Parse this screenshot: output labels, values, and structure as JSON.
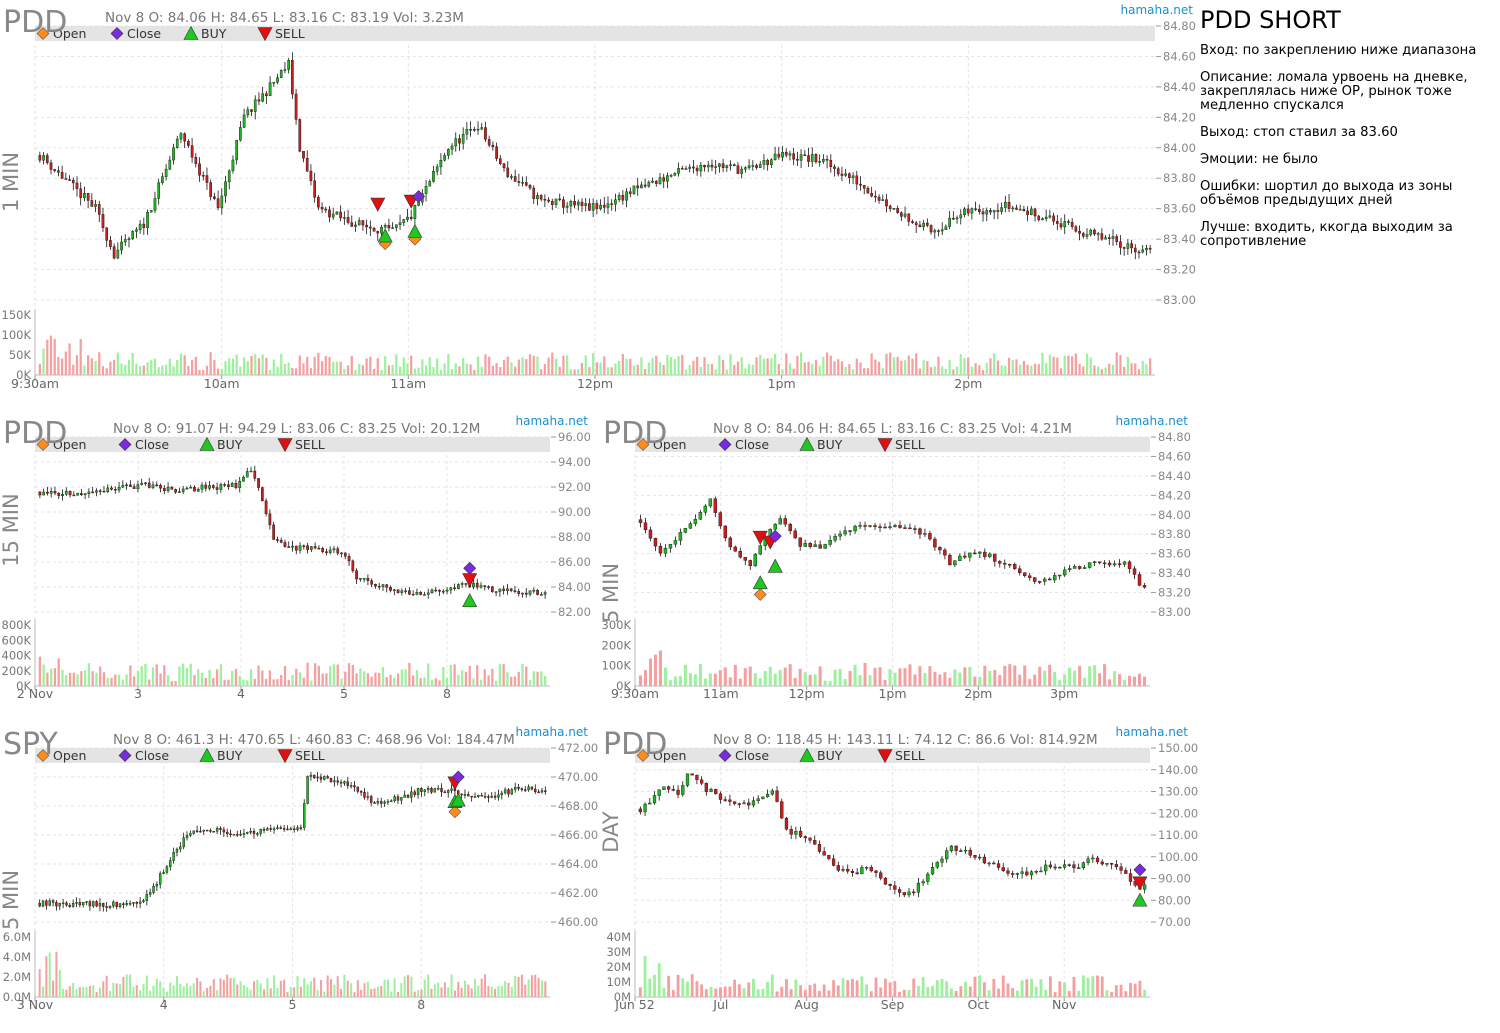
{
  "notes": {
    "title": "PDD SHORT",
    "entry": "Вход: по закреплению ниже диапазона",
    "description": "Описание: ломала урвоень на дневке, закреплялась ниже ОР, рынок тоже медленно спускался",
    "exit": "Выход: стоп ставил за 83.60",
    "emotions": "Эмоции: не было",
    "mistakes": "Ошибки: шортил до выхода из зоны объёмов предыдущих дней",
    "better": "Лучше: входить, ккогда выходим за сопротивление"
  },
  "legend": {
    "open": "Open",
    "close": "Close",
    "buy": "BUY",
    "sell": "SELL",
    "colors": {
      "open": "#ff8c1a",
      "close": "#7a2be2",
      "buy": "#1ec81e",
      "sell": "#e01010"
    }
  },
  "colors": {
    "up": "#1db81d",
    "down": "#c81e1e",
    "vol_up": "#9ef09e",
    "vol_down": "#f5a0a0",
    "grid": "#e3e3e3",
    "watermark": "#1a8fd1"
  },
  "chart_data": [
    {
      "id": "c1",
      "type": "candlestick",
      "ticker": "PDD",
      "timeframe": "1 MIN",
      "info": "Nov 8 O: 84.06 H: 84.65 L: 83.16 C: 83.19     Vol: 3.23M",
      "source": "hamaha.net",
      "y_ticks": [
        "84.80",
        "84.60",
        "84.40",
        "84.20",
        "84.00",
        "83.80",
        "83.60",
        "83.40",
        "83.20",
        "83.00"
      ],
      "ylim": [
        83.0,
        84.8
      ],
      "x_ticks": [
        "9:30am",
        "10am",
        "11am",
        "12pm",
        "1pm",
        "2pm"
      ],
      "vol_ticks": [
        "150K",
        "100K",
        "50K",
        "0K"
      ],
      "path": [
        [
          0,
          83.95
        ],
        [
          15,
          83.6
        ],
        [
          20,
          83.3
        ],
        [
          28,
          83.5
        ],
        [
          38,
          84.1
        ],
        [
          48,
          83.6
        ],
        [
          55,
          84.2
        ],
        [
          62,
          84.4
        ],
        [
          67,
          84.55
        ],
        [
          70,
          84.0
        ],
        [
          75,
          83.6
        ],
        [
          85,
          83.5
        ],
        [
          95,
          83.45
        ],
        [
          100,
          83.55
        ],
        [
          110,
          84.0
        ],
        [
          118,
          84.15
        ],
        [
          125,
          83.85
        ],
        [
          135,
          83.65
        ],
        [
          150,
          83.6
        ],
        [
          160,
          83.72
        ],
        [
          170,
          83.82
        ],
        [
          180,
          83.9
        ],
        [
          190,
          83.85
        ],
        [
          200,
          83.95
        ],
        [
          210,
          83.92
        ],
        [
          220,
          83.78
        ],
        [
          230,
          83.6
        ],
        [
          240,
          83.45
        ],
        [
          250,
          83.58
        ],
        [
          260,
          83.62
        ],
        [
          270,
          83.55
        ],
        [
          280,
          83.45
        ],
        [
          290,
          83.38
        ],
        [
          300,
          83.3
        ],
        [
          305,
          83.22
        ]
      ],
      "n": 300,
      "markers": [
        {
          "type": "open",
          "i": 93,
          "y": 83.37
        },
        {
          "type": "open",
          "i": 101,
          "y": 83.4
        },
        {
          "type": "buy",
          "i": 93,
          "y": 83.42
        },
        {
          "type": "buy",
          "i": 101,
          "y": 83.45
        },
        {
          "type": "sell",
          "i": 91,
          "y": 83.63
        },
        {
          "type": "sell",
          "i": 100,
          "y": 83.65
        },
        {
          "type": "close",
          "i": 102,
          "y": 83.68
        }
      ]
    },
    {
      "id": "c2",
      "type": "candlestick",
      "ticker": "PDD",
      "timeframe": "15 MIN",
      "info": "Nov 8 O: 91.07 H: 94.29 L: 83.06 C: 83.25     Vol: 20.12M",
      "source": "hamaha.net",
      "y_ticks": [
        "96.00",
        "94.00",
        "92.00",
        "90.00",
        "88.00",
        "86.00",
        "84.00",
        "82.00"
      ],
      "ylim": [
        82.0,
        96.0
      ],
      "x_ticks": [
        "2 Nov",
        "3",
        "4",
        "5",
        "8"
      ],
      "vol_ticks": [
        "800K",
        "600K",
        "400K",
        "200K",
        "0K"
      ],
      "path": [
        [
          0,
          91.6
        ],
        [
          10,
          91.4
        ],
        [
          20,
          91.8
        ],
        [
          27,
          92.2
        ],
        [
          35,
          91.7
        ],
        [
          45,
          92.0
        ],
        [
          52,
          92.1
        ],
        [
          56,
          93.5
        ],
        [
          59,
          91.0
        ],
        [
          62,
          88.0
        ],
        [
          65,
          87.2
        ],
        [
          78,
          86.9
        ],
        [
          81,
          86.4
        ],
        [
          84,
          84.8
        ],
        [
          90,
          84.0
        ],
        [
          100,
          83.5
        ],
        [
          110,
          84.0
        ],
        [
          116,
          84.2
        ],
        [
          120,
          83.7
        ],
        [
          130,
          83.6
        ],
        [
          135,
          83.5
        ]
      ],
      "n": 135,
      "markers": [
        {
          "type": "close",
          "i": 114,
          "y": 85.5
        },
        {
          "type": "sell",
          "i": 114,
          "y": 84.6
        },
        {
          "type": "buy",
          "i": 114,
          "y": 82.9
        }
      ]
    },
    {
      "id": "c3",
      "type": "candlestick",
      "ticker": "PDD",
      "timeframe": "5 MIN",
      "info": "Nov 8 O: 84.06 H: 84.65 L: 83.16 C: 83.25     Vol: 4.21M",
      "source": "hamaha.net",
      "y_ticks": [
        "84.80",
        "84.60",
        "84.40",
        "84.20",
        "84.00",
        "83.80",
        "83.60",
        "83.40",
        "83.20",
        "83.00"
      ],
      "ylim": [
        83.0,
        84.8
      ],
      "x_ticks": [
        "9:30am",
        "11am",
        "12pm",
        "1pm",
        "2pm",
        "3pm"
      ],
      "vol_ticks": [
        "300K",
        "200K",
        "100K",
        "0K"
      ],
      "path": [
        [
          0,
          83.95
        ],
        [
          4,
          83.6
        ],
        [
          8,
          83.8
        ],
        [
          12,
          84.0
        ],
        [
          14,
          84.15
        ],
        [
          18,
          83.65
        ],
        [
          22,
          83.45
        ],
        [
          25,
          83.8
        ],
        [
          28,
          83.95
        ],
        [
          32,
          83.7
        ],
        [
          36,
          83.65
        ],
        [
          42,
          83.85
        ],
        [
          48,
          83.9
        ],
        [
          54,
          83.88
        ],
        [
          58,
          83.75
        ],
        [
          62,
          83.5
        ],
        [
          66,
          83.6
        ],
        [
          70,
          83.58
        ],
        [
          76,
          83.4
        ],
        [
          80,
          83.3
        ],
        [
          85,
          83.42
        ],
        [
          92,
          83.5
        ],
        [
          97,
          83.52
        ],
        [
          100,
          83.3
        ],
        [
          102,
          83.22
        ]
      ],
      "n": 102,
      "markers": [
        {
          "type": "open",
          "i": 24,
          "y": 83.18
        },
        {
          "type": "buy",
          "i": 24,
          "y": 83.3
        },
        {
          "type": "buy",
          "i": 27,
          "y": 83.47
        },
        {
          "type": "sell",
          "i": 24,
          "y": 83.77
        },
        {
          "type": "sell",
          "i": 26,
          "y": 83.72
        },
        {
          "type": "close",
          "i": 27,
          "y": 83.78
        }
      ]
    },
    {
      "id": "c4",
      "type": "candlestick",
      "ticker": "SPY",
      "timeframe": "5 MIN",
      "info": "Nov 8 O: 461.3 H: 470.65 L: 460.83 C: 468.96     Vol: 184.47M",
      "source": "hamaha.net",
      "y_ticks": [
        "472.00",
        "470.00",
        "468.00",
        "466.00",
        "464.00",
        "462.00",
        "460.00"
      ],
      "ylim": [
        460.0,
        472.0
      ],
      "x_ticks": [
        "3 Nov",
        "4",
        "5",
        "8"
      ],
      "vol_ticks": [
        "6.0M",
        "4.0M",
        "2.0M",
        "0.0M"
      ],
      "path": [
        [
          0,
          461.3
        ],
        [
          20,
          461.2
        ],
        [
          30,
          461.4
        ],
        [
          34,
          462.3
        ],
        [
          38,
          464.0
        ],
        [
          44,
          466.0
        ],
        [
          50,
          466.5
        ],
        [
          56,
          466.1
        ],
        [
          66,
          466.3
        ],
        [
          78,
          466.6
        ],
        [
          80,
          470.0
        ],
        [
          88,
          469.8
        ],
        [
          94,
          469.2
        ],
        [
          100,
          468.2
        ],
        [
          106,
          468.5
        ],
        [
          114,
          469.1
        ],
        [
          124,
          469.0
        ],
        [
          132,
          468.6
        ],
        [
          144,
          469.2
        ],
        [
          152,
          468.9
        ]
      ],
      "n": 152,
      "markers": [
        {
          "type": "open",
          "i": 124,
          "y": 467.6
        },
        {
          "type": "buy",
          "i": 124,
          "y": 468.3
        },
        {
          "type": "buy",
          "i": 125,
          "y": 468.4
        },
        {
          "type": "sell",
          "i": 124,
          "y": 469.6
        },
        {
          "type": "close",
          "i": 125,
          "y": 470.0
        }
      ]
    },
    {
      "id": "c5",
      "type": "candlestick",
      "ticker": "PDD",
      "timeframe": "DAY",
      "info": "Nov 8 O: 118.45 H: 143.11 L: 74.12 C: 86.6     Vol: 814.92M",
      "source": "hamaha.net",
      "y_ticks": [
        "150.00",
        "140.00",
        "130.00",
        "120.00",
        "110.00",
        "100.00",
        "90.00",
        "80.00",
        "70.00"
      ],
      "ylim": [
        70.0,
        150.0
      ],
      "x_ticks": [
        "Jun 52",
        "Jul",
        "Aug",
        "Sep",
        "Oct",
        "Nov"
      ],
      "vol_ticks": [
        "40M",
        "30M",
        "20M",
        "10M",
        "0M"
      ],
      "path": [
        [
          0,
          122
        ],
        [
          5,
          132
        ],
        [
          8,
          128
        ],
        [
          10,
          138
        ],
        [
          14,
          131
        ],
        [
          18,
          126
        ],
        [
          22,
          124
        ],
        [
          26,
          128
        ],
        [
          28,
          131
        ],
        [
          31,
          112
        ],
        [
          36,
          108
        ],
        [
          40,
          98
        ],
        [
          44,
          92
        ],
        [
          48,
          95
        ],
        [
          52,
          88
        ],
        [
          56,
          82
        ],
        [
          60,
          88
        ],
        [
          62,
          95
        ],
        [
          66,
          104
        ],
        [
          70,
          101
        ],
        [
          76,
          95
        ],
        [
          82,
          91
        ],
        [
          86,
          96
        ],
        [
          92,
          95
        ],
        [
          96,
          100
        ],
        [
          102,
          93
        ],
        [
          106,
          86
        ],
        [
          108,
          88
        ]
      ],
      "n": 108,
      "markers": [
        {
          "type": "close",
          "i": 106,
          "y": 94
        },
        {
          "type": "sell",
          "i": 106,
          "y": 88
        },
        {
          "type": "buy",
          "i": 106,
          "y": 80
        }
      ]
    }
  ]
}
